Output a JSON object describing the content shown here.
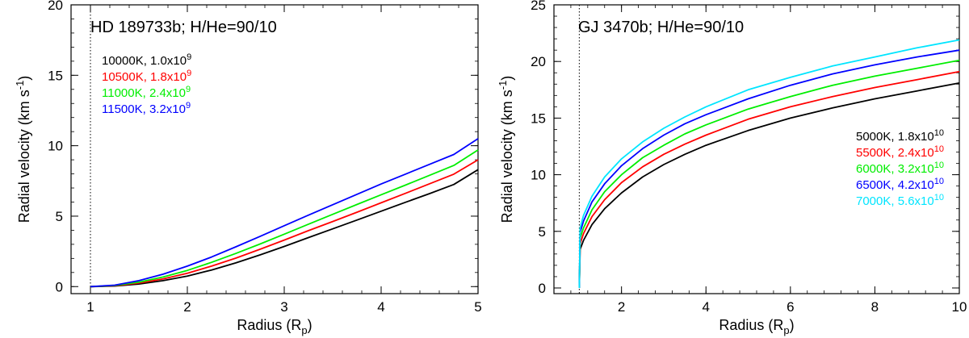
{
  "chart_data": [
    {
      "type": "line",
      "title": "HD 189733b; H/He=90/10",
      "xlabel": "Radius (R",
      "xlabel_sub": "p",
      "xlabel_end": ")",
      "ylabel": "Radial velocity (km s",
      "ylabel_sup": "-1",
      "ylabel_end": ")",
      "xlim": [
        0.8,
        5
      ],
      "ylim": [
        -0.5,
        20
      ],
      "xticks": [
        1,
        2,
        3,
        4,
        5
      ],
      "yticks": [
        0,
        5,
        10,
        15,
        20
      ],
      "vline_x": 1,
      "legend_position": "upper-left",
      "series": [
        {
          "name": "10000K, 1.0x10",
          "exp": "9",
          "color": "#000000",
          "x": [
            1.0,
            1.25,
            1.5,
            1.75,
            2.0,
            2.25,
            2.5,
            2.75,
            3.0,
            3.25,
            3.5,
            3.75,
            4.0,
            4.25,
            4.5,
            4.75,
            5.0
          ],
          "y": [
            0.0,
            0.04,
            0.18,
            0.42,
            0.75,
            1.18,
            1.68,
            2.25,
            2.85,
            3.48,
            4.1,
            4.72,
            5.35,
            5.98,
            6.6,
            7.25,
            8.3
          ]
        },
        {
          "name": "10500K, 1.8x10",
          "exp": "9",
          "color": "#ff0000",
          "x": [
            1.0,
            1.25,
            1.5,
            1.75,
            2.0,
            2.25,
            2.5,
            2.75,
            3.0,
            3.25,
            3.5,
            3.75,
            4.0,
            4.25,
            4.5,
            4.75,
            5.0
          ],
          "y": [
            0.0,
            0.06,
            0.25,
            0.55,
            0.95,
            1.45,
            2.02,
            2.65,
            3.3,
            3.97,
            4.62,
            5.28,
            5.95,
            6.62,
            7.3,
            7.98,
            9.0
          ]
        },
        {
          "name": "11000K, 2.4x10",
          "exp": "9",
          "color": "#00ee00",
          "x": [
            1.0,
            1.25,
            1.5,
            1.75,
            2.0,
            2.25,
            2.5,
            2.75,
            3.0,
            3.25,
            3.5,
            3.75,
            4.0,
            4.25,
            4.5,
            4.75,
            5.0
          ],
          "y": [
            0.0,
            0.08,
            0.32,
            0.68,
            1.15,
            1.72,
            2.35,
            3.02,
            3.72,
            4.43,
            5.13,
            5.83,
            6.52,
            7.2,
            7.9,
            8.6,
            9.7
          ]
        },
        {
          "name": "11500K, 3.2x10",
          "exp": "9",
          "color": "#0000ff",
          "x": [
            1.0,
            1.25,
            1.5,
            1.75,
            2.0,
            2.25,
            2.5,
            2.75,
            3.0,
            3.25,
            3.5,
            3.75,
            4.0,
            4.25,
            4.5,
            4.75,
            5.0
          ],
          "y": [
            0.0,
            0.1,
            0.42,
            0.88,
            1.45,
            2.1,
            2.82,
            3.56,
            4.32,
            5.07,
            5.81,
            6.55,
            7.28,
            7.98,
            8.68,
            9.38,
            10.5
          ]
        }
      ]
    },
    {
      "type": "line",
      "title": "GJ 3470b; H/He=90/10",
      "xlabel": "Radius (R",
      "xlabel_sub": "p",
      "xlabel_end": ")",
      "ylabel": "Radial velocity (km s",
      "ylabel_sup": "-1",
      "ylabel_end": ")",
      "xlim": [
        0.4,
        10
      ],
      "ylim": [
        -0.5,
        25
      ],
      "xticks": [
        2,
        4,
        6,
        8,
        10
      ],
      "yticks": [
        0,
        5,
        10,
        15,
        20,
        25
      ],
      "vline_x": 1,
      "legend_position": "right",
      "series": [
        {
          "name": "5000K, 1.8x10",
          "exp": "10",
          "color": "#000000",
          "x": [
            1.0,
            1.02,
            1.1,
            1.3,
            1.6,
            2.0,
            2.5,
            3.0,
            3.5,
            4.0,
            5.0,
            6.0,
            7.0,
            8.0,
            9.0,
            10.0
          ],
          "y": [
            0.0,
            3.4,
            4.2,
            5.6,
            7.0,
            8.4,
            9.8,
            10.9,
            11.8,
            12.6,
            13.9,
            15.0,
            15.9,
            16.7,
            17.4,
            18.1
          ]
        },
        {
          "name": "5500K, 2.4x10",
          "exp": "10",
          "color": "#ff0000",
          "x": [
            1.0,
            1.02,
            1.1,
            1.3,
            1.6,
            2.0,
            2.5,
            3.0,
            3.5,
            4.0,
            5.0,
            6.0,
            7.0,
            8.0,
            9.0,
            10.0
          ],
          "y": [
            0.0,
            3.9,
            4.8,
            6.3,
            7.8,
            9.3,
            10.7,
            11.8,
            12.7,
            13.5,
            14.9,
            16.0,
            16.9,
            17.7,
            18.4,
            19.1
          ]
        },
        {
          "name": "6000K, 3.2x10",
          "exp": "10",
          "color": "#00ee00",
          "x": [
            1.0,
            1.02,
            1.1,
            1.3,
            1.6,
            2.0,
            2.5,
            3.0,
            3.5,
            4.0,
            5.0,
            6.0,
            7.0,
            8.0,
            9.0,
            10.0
          ],
          "y": [
            0.0,
            4.4,
            5.3,
            6.9,
            8.5,
            10.0,
            11.5,
            12.6,
            13.6,
            14.4,
            15.8,
            16.9,
            17.9,
            18.7,
            19.4,
            20.1
          ]
        },
        {
          "name": "6500K, 4.2x10",
          "exp": "10",
          "color": "#0000ff",
          "x": [
            1.0,
            1.02,
            1.1,
            1.3,
            1.6,
            2.0,
            2.5,
            3.0,
            3.5,
            4.0,
            5.0,
            6.0,
            7.0,
            8.0,
            9.0,
            10.0
          ],
          "y": [
            0.0,
            4.9,
            5.9,
            7.6,
            9.2,
            10.8,
            12.3,
            13.5,
            14.5,
            15.3,
            16.7,
            17.9,
            18.9,
            19.7,
            20.4,
            21.0
          ]
        },
        {
          "name": "7000K, 5.6x10",
          "exp": "10",
          "color": "#00e5ff",
          "x": [
            1.0,
            1.02,
            1.1,
            1.3,
            1.6,
            2.0,
            2.5,
            3.0,
            3.5,
            4.0,
            5.0,
            6.0,
            7.0,
            8.0,
            9.0,
            10.0
          ],
          "y": [
            0.0,
            5.3,
            6.4,
            8.1,
            9.8,
            11.4,
            12.9,
            14.1,
            15.1,
            16.0,
            17.5,
            18.6,
            19.6,
            20.4,
            21.2,
            21.9
          ]
        }
      ]
    }
  ]
}
